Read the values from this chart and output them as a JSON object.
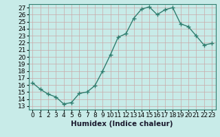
{
  "x": [
    0,
    1,
    2,
    3,
    4,
    5,
    6,
    7,
    8,
    9,
    10,
    11,
    12,
    13,
    14,
    15,
    16,
    17,
    18,
    19,
    20,
    21,
    22,
    23
  ],
  "y": [
    16.3,
    15.4,
    14.7,
    14.3,
    13.3,
    13.5,
    14.8,
    15.0,
    15.9,
    18.0,
    20.3,
    22.8,
    23.3,
    25.5,
    26.8,
    27.1,
    26.0,
    26.7,
    27.0,
    24.7,
    24.3,
    23.0,
    21.7,
    21.9
  ],
  "line_color": "#2e7d6e",
  "marker": "+",
  "marker_size": 4,
  "line_width": 1.0,
  "bg_color": "#c8ebe8",
  "grid_color": "#c8a8a8",
  "ylabel_ticks": [
    13,
    14,
    15,
    16,
    17,
    18,
    19,
    20,
    21,
    22,
    23,
    24,
    25,
    26,
    27
  ],
  "xlabel": "Humidex (Indice chaleur)",
  "ylim": [
    12.5,
    27.5
  ],
  "xlim": [
    -0.5,
    23.5
  ],
  "tick_fontsize": 6.5,
  "xlabel_fontsize": 7.5,
  "spine_color": "#2e7d6e"
}
